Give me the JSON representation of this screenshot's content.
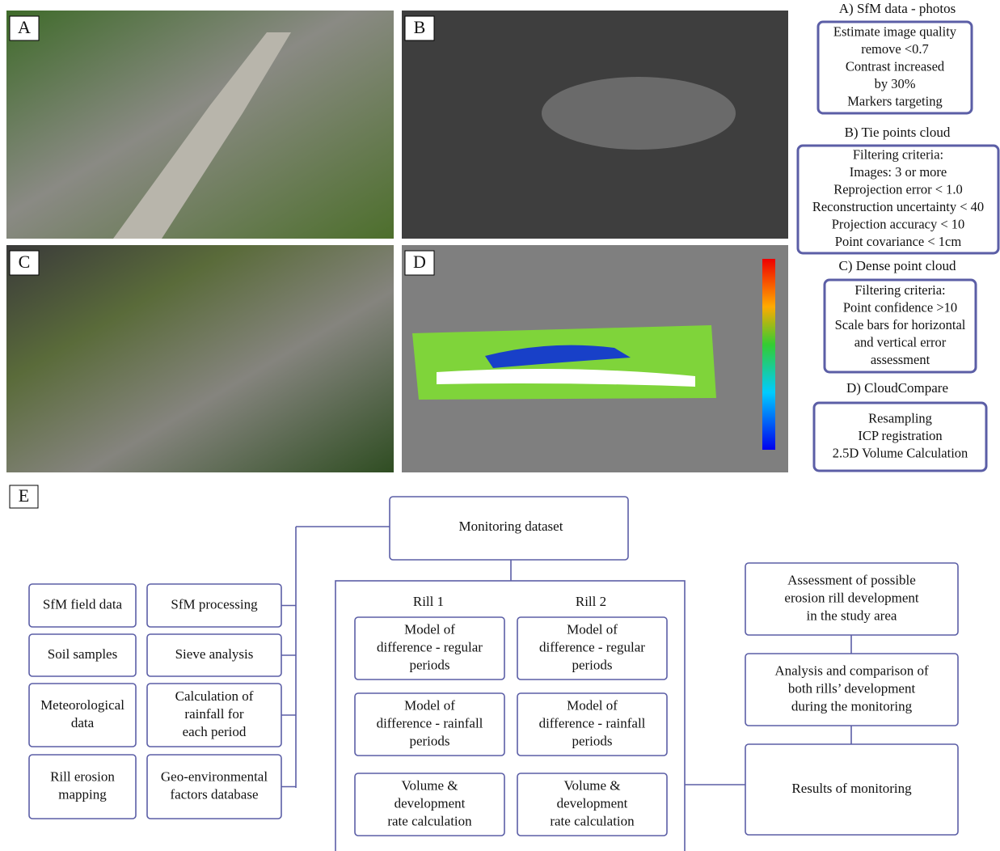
{
  "panels": [
    {
      "label": "A"
    },
    {
      "label": "B"
    },
    {
      "label": "C"
    },
    {
      "label": "D"
    }
  ],
  "steps": [
    {
      "title": "A) SfM data - photos",
      "lines": [
        "Estimate image quality",
        "remove <0.7",
        "Contrast increased",
        "by 30%",
        "Markers targeting"
      ]
    },
    {
      "title": "B) Tie points cloud",
      "lines": [
        "Filtering criteria:",
        "Images: 3 or more",
        "Reprojection error < 1.0",
        "Reconstruction uncertainty < 40",
        "Projection accuracy < 10",
        "Point covariance < 1cm"
      ]
    },
    {
      "title": "C) Dense point cloud",
      "lines": [
        "Filtering criteria:",
        "Point confidence >10",
        "Scale bars for horizontal",
        "and vertical error",
        "assessment"
      ]
    },
    {
      "title": "D) CloudCompare",
      "lines": [
        "Resampling",
        "ICP registration",
        "2.5D Volume Calculation"
      ]
    }
  ],
  "workflow": {
    "label": "E",
    "root": "Monitoring dataset",
    "inputs": [
      [
        [
          "SfM field data"
        ],
        [
          "SfM processing"
        ]
      ],
      [
        [
          "Soil samples"
        ],
        [
          "Sieve analysis"
        ]
      ],
      [
        [
          "Meteorological",
          "data"
        ],
        [
          "Calculation of",
          "rainfall for",
          "each period"
        ]
      ],
      [
        [
          "Rill erosion",
          "mapping"
        ],
        [
          "Geo-environmental",
          "factors database"
        ]
      ]
    ],
    "rills": [
      {
        "title": "Rill 1",
        "boxes": [
          [
            "Model of",
            "difference - regular",
            "periods"
          ],
          [
            "Model of",
            "difference - rainfall",
            "periods"
          ],
          [
            "Volume &",
            "development",
            "rate calculation"
          ]
        ]
      },
      {
        "title": "Rill 2",
        "boxes": [
          [
            "Model of",
            "difference - regular",
            "periods"
          ],
          [
            "Model of",
            "difference - rainfall",
            "periods"
          ],
          [
            "Volume &",
            "development",
            "rate calculation"
          ]
        ]
      }
    ],
    "outputs": [
      [
        "Assessment of possible",
        "erosion rill development",
        "in the study area"
      ],
      [
        "Analysis and comparison of",
        "both rills’ development",
        "during the monitoring"
      ],
      [
        "Results of monitoring"
      ]
    ]
  }
}
